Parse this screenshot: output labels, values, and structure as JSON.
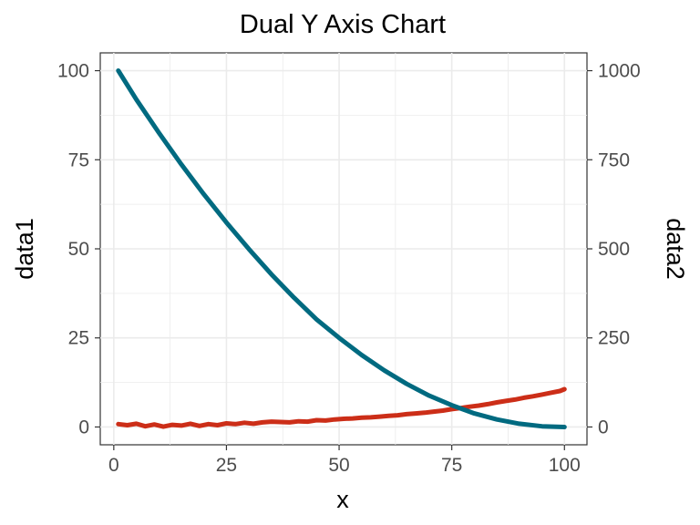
{
  "chart_data": {
    "type": "line",
    "title": "Dual Y Axis Chart",
    "xlabel": "x",
    "ylabel_left": "data1",
    "ylabel_right": "data2",
    "xlim": [
      -3,
      105
    ],
    "ylim_left": [
      -5,
      105
    ],
    "ylim_right": [
      -50,
      1050
    ],
    "xticks": [
      0,
      25,
      50,
      75,
      100
    ],
    "yticks_left": [
      0,
      25,
      50,
      75,
      100
    ],
    "yticks_right": [
      0,
      250,
      500,
      750,
      1000
    ],
    "grid": true,
    "legend": "none",
    "colors": {
      "data1": "#cc2e18",
      "data2": "#006a80"
    },
    "series": [
      {
        "axis": "left",
        "x": [
          1,
          3,
          5,
          7,
          9,
          11,
          13,
          15,
          17,
          19,
          21,
          23,
          25,
          27,
          29,
          31,
          33,
          35,
          37,
          39,
          41,
          43,
          45,
          47,
          49,
          51,
          53,
          55,
          57,
          59,
          61,
          63,
          65,
          67,
          69,
          71,
          73,
          75,
          77,
          79,
          81,
          83,
          85,
          87,
          89,
          91,
          93,
          95,
          97,
          99,
          100
        ],
        "values": [
          0.8,
          0.5,
          0.9,
          0.2,
          0.7,
          0.1,
          0.6,
          0.4,
          0.9,
          0.3,
          0.8,
          0.5,
          1.0,
          0.8,
          1.2,
          0.9,
          1.3,
          1.5,
          1.4,
          1.3,
          1.6,
          1.5,
          1.9,
          1.8,
          2.1,
          2.3,
          2.4,
          2.6,
          2.7,
          2.9,
          3.1,
          3.3,
          3.6,
          3.8,
          4.0,
          4.3,
          4.6,
          5.0,
          5.3,
          5.7,
          6.0,
          6.4,
          6.9,
          7.3,
          7.7,
          8.2,
          8.6,
          9.1,
          9.6,
          10.1,
          10.6
        ]
      },
      {
        "axis": "right",
        "x": [
          1,
          5,
          10,
          15,
          20,
          25,
          30,
          35,
          40,
          45,
          50,
          55,
          60,
          65,
          70,
          75,
          80,
          85,
          90,
          95,
          100
        ],
        "values": [
          1000,
          919,
          826,
          737,
          653,
          574,
          499,
          428,
          363,
          302,
          250,
          202,
          159,
          121,
          88,
          61,
          38,
          21,
          9,
          2,
          0
        ]
      }
    ]
  }
}
